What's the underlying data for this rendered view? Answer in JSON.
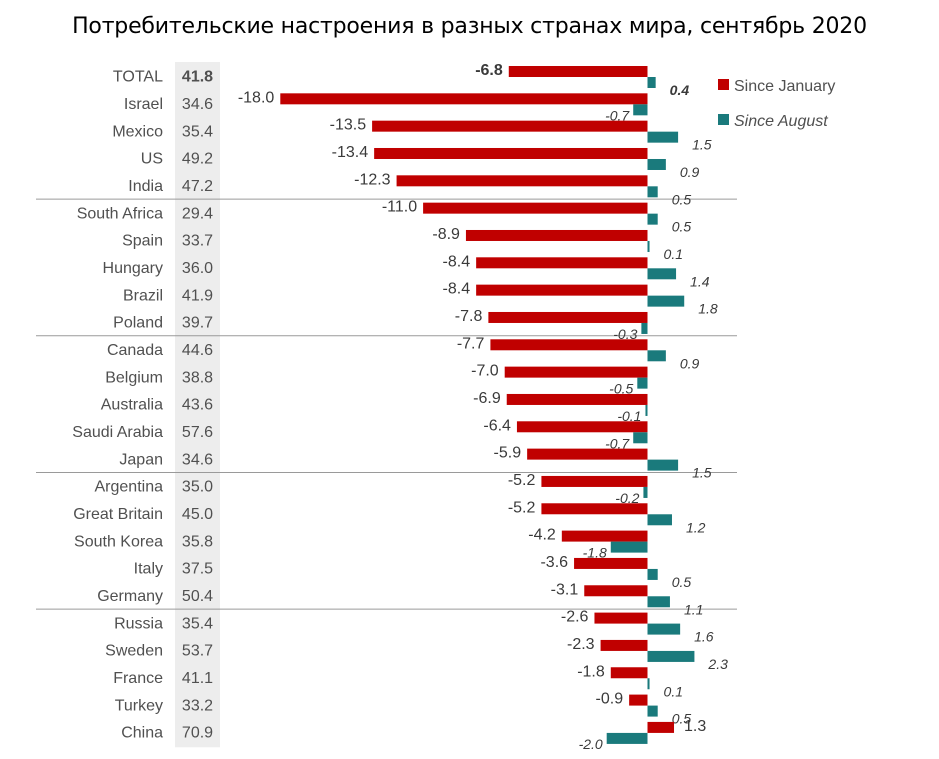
{
  "title": "Потребительские настроения в разных странах мира, сентябрь 2020",
  "colors": {
    "since_january": "#c00000",
    "since_august": "#1a7a7c",
    "score_background": "#ededed",
    "separator": "#9a9a9a"
  },
  "legend": [
    {
      "key": "since_january",
      "label": "Since January"
    },
    {
      "key": "since_august",
      "label": "Since August"
    }
  ],
  "chart_data": {
    "type": "bar",
    "title": "Потребительские настроения в разных странах мира, сентябрь 2020",
    "orientation": "horizontal",
    "categories": [
      "TOTAL",
      "Israel",
      "Mexico",
      "US",
      "India",
      "South Africa",
      "Spain",
      "Hungary",
      "Brazil",
      "Poland",
      "Canada",
      "Belgium",
      "Australia",
      "Saudi Arabia",
      "Japan",
      "Argentina",
      "Great Britain",
      "South Korea",
      "Italy",
      "Germany",
      "Russia",
      "Sweden",
      "France",
      "Turkey",
      "China"
    ],
    "scores": [
      "41.8",
      "34.6",
      "35.4",
      "49.2",
      "47.2",
      "29.4",
      "33.7",
      "36.0",
      "41.9",
      "39.7",
      "44.6",
      "38.8",
      "43.6",
      "57.6",
      "34.6",
      "35.0",
      "45.0",
      "35.8",
      "37.5",
      "50.4",
      "35.4",
      "53.7",
      "41.1",
      "33.2",
      "70.9"
    ],
    "series": [
      {
        "name": "Since January",
        "values": [
          -6.8,
          -18.0,
          -13.5,
          -13.4,
          -12.3,
          -11.0,
          -8.9,
          -8.4,
          -8.4,
          -7.8,
          -7.7,
          -7.0,
          -6.9,
          -6.4,
          -5.9,
          -5.2,
          -5.2,
          -4.2,
          -3.6,
          -3.1,
          -2.6,
          -2.3,
          -1.8,
          -0.9,
          1.3
        ],
        "labels": [
          "-6.8",
          "-18.0",
          "-13.5",
          "-13.4",
          "-12.3",
          "-11.0",
          "-8.9",
          "-8.4",
          "-8.4",
          "-7.8",
          "-7.7",
          "-7.0",
          "-6.9",
          "-6.4",
          "-5.9",
          "-5.2",
          "-5.2",
          "-4.2",
          "-3.6",
          "-3.1",
          "-2.6",
          "-2.3",
          "-1.8",
          "-0.9",
          "1.3"
        ]
      },
      {
        "name": "Since August",
        "values": [
          0.4,
          -0.7,
          1.5,
          0.9,
          0.5,
          0.5,
          0.1,
          1.4,
          1.8,
          -0.3,
          0.9,
          -0.5,
          -0.1,
          -0.7,
          1.5,
          -0.2,
          1.2,
          -1.8,
          0.5,
          1.1,
          1.6,
          2.3,
          0.1,
          0.5,
          -2.0
        ],
        "labels": [
          "0.4",
          "-0.7",
          "1.5",
          "0.9",
          "0.5",
          "0.5",
          "0.1",
          "1.4",
          "1.8",
          "-0.3",
          "0.9",
          "-0.5",
          "-0.1",
          "-0.7",
          "1.5",
          "-0.2",
          "1.2",
          "-1.8",
          "0.5",
          "1.1",
          "1.6",
          "2.3",
          "0.1",
          "0.5",
          "-2.0"
        ]
      }
    ],
    "group_separators_after": [
      "India",
      "Poland",
      "Japan",
      "Germany"
    ],
    "highlight_bold": [
      "TOTAL"
    ],
    "legend_position": "top-right",
    "grid": false
  }
}
